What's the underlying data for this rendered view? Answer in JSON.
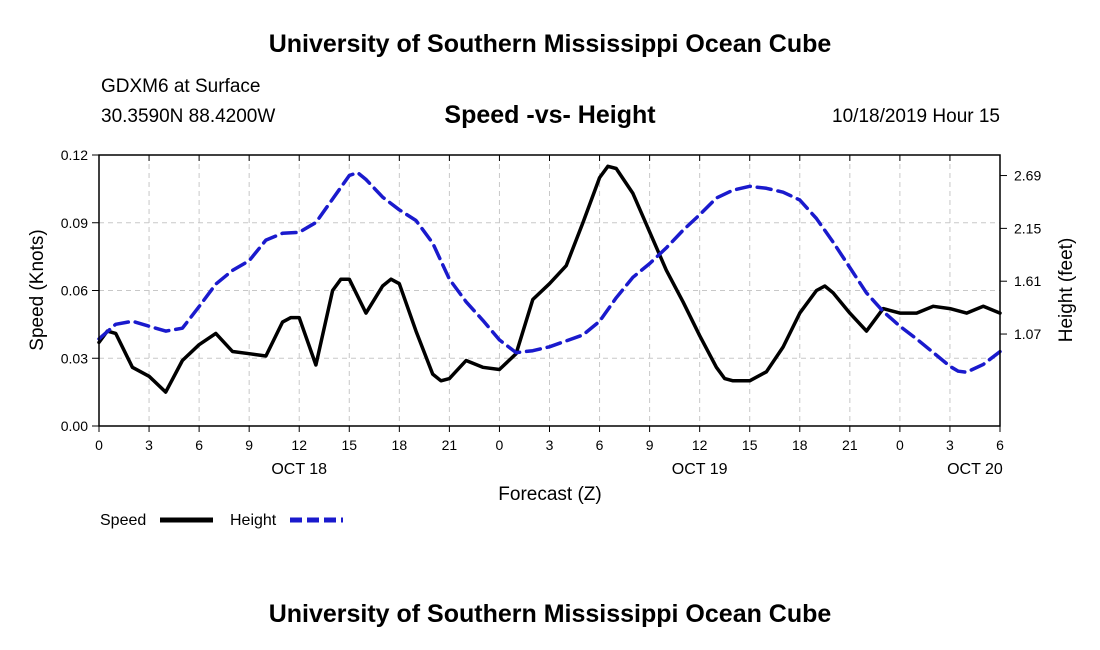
{
  "page": {
    "top_title": "University of Southern Mississippi Ocean Cube",
    "bottom_title": "University of Southern Mississippi Ocean Cube",
    "station": "GDXM6 at Surface",
    "coords": "30.3590N 88.4200W",
    "datetime": "10/18/2019 Hour 15"
  },
  "chart_data": {
    "type": "line",
    "title": "Speed -vs- Height",
    "xlabel": "Forecast (Z)",
    "ylabel_left": "Speed (Knots)",
    "ylabel_right": "Height (feet)",
    "x_range_hours": [
      0,
      54
    ],
    "x_ticks": [
      {
        "h": 0,
        "label": "0"
      },
      {
        "h": 3,
        "label": "3"
      },
      {
        "h": 6,
        "label": "6"
      },
      {
        "h": 9,
        "label": "9"
      },
      {
        "h": 12,
        "label": "12"
      },
      {
        "h": 15,
        "label": "15"
      },
      {
        "h": 18,
        "label": "18"
      },
      {
        "h": 21,
        "label": "21"
      },
      {
        "h": 24,
        "label": "0"
      },
      {
        "h": 27,
        "label": "3"
      },
      {
        "h": 30,
        "label": "6"
      },
      {
        "h": 33,
        "label": "9"
      },
      {
        "h": 36,
        "label": "12"
      },
      {
        "h": 39,
        "label": "15"
      },
      {
        "h": 42,
        "label": "18"
      },
      {
        "h": 45,
        "label": "21"
      },
      {
        "h": 48,
        "label": "0"
      },
      {
        "h": 51,
        "label": "3"
      },
      {
        "h": 54,
        "label": "6"
      }
    ],
    "day_labels": [
      {
        "h": 12,
        "label": "OCT 18"
      },
      {
        "h": 36,
        "label": "OCT 19"
      },
      {
        "h": 52.5,
        "label": "OCT 20"
      }
    ],
    "left_axis": {
      "min": 0,
      "max": 0.12,
      "ticks": [
        "0.00",
        "0.03",
        "0.06",
        "0.09",
        "0.12"
      ]
    },
    "right_axis": {
      "min": 0.13,
      "max": 2.9,
      "ticks": [
        "1.07",
        "1.61",
        "2.15",
        "2.69"
      ]
    },
    "grid": true,
    "legend_position": "bottom-left",
    "series": [
      {
        "name": "Speed",
        "axis": "left",
        "color": "#000000",
        "style": "solid",
        "points": [
          [
            0,
            0.037
          ],
          [
            0.5,
            0.042
          ],
          [
            1,
            0.041
          ],
          [
            2,
            0.026
          ],
          [
            3,
            0.022
          ],
          [
            4,
            0.015
          ],
          [
            5,
            0.029
          ],
          [
            6,
            0.036
          ],
          [
            7,
            0.041
          ],
          [
            8,
            0.033
          ],
          [
            9,
            0.032
          ],
          [
            10,
            0.031
          ],
          [
            11,
            0.046
          ],
          [
            11.5,
            0.048
          ],
          [
            12,
            0.048
          ],
          [
            13,
            0.027
          ],
          [
            14,
            0.06
          ],
          [
            14.5,
            0.065
          ],
          [
            15,
            0.065
          ],
          [
            16,
            0.05
          ],
          [
            17,
            0.062
          ],
          [
            17.5,
            0.065
          ],
          [
            18,
            0.063
          ],
          [
            19,
            0.042
          ],
          [
            20,
            0.023
          ],
          [
            20.5,
            0.02
          ],
          [
            21,
            0.021
          ],
          [
            22,
            0.029
          ],
          [
            23,
            0.026
          ],
          [
            24,
            0.025
          ],
          [
            25,
            0.032
          ],
          [
            26,
            0.056
          ],
          [
            27,
            0.063
          ],
          [
            28,
            0.071
          ],
          [
            29,
            0.09
          ],
          [
            30,
            0.11
          ],
          [
            30.5,
            0.115
          ],
          [
            31,
            0.114
          ],
          [
            32,
            0.103
          ],
          [
            33,
            0.086
          ],
          [
            34,
            0.069
          ],
          [
            35,
            0.055
          ],
          [
            36,
            0.04
          ],
          [
            37,
            0.026
          ],
          [
            37.5,
            0.021
          ],
          [
            38,
            0.02
          ],
          [
            39,
            0.02
          ],
          [
            40,
            0.024
          ],
          [
            41,
            0.035
          ],
          [
            42,
            0.05
          ],
          [
            43,
            0.06
          ],
          [
            43.5,
            0.062
          ],
          [
            44,
            0.059
          ],
          [
            45,
            0.05
          ],
          [
            46,
            0.042
          ],
          [
            47,
            0.052
          ],
          [
            48,
            0.05
          ],
          [
            49,
            0.05
          ],
          [
            50,
            0.053
          ],
          [
            51,
            0.052
          ],
          [
            52,
            0.05
          ],
          [
            53,
            0.053
          ],
          [
            54,
            0.05
          ]
        ]
      },
      {
        "name": "Height",
        "axis": "right",
        "color": "#1a1acd",
        "style": "dashed",
        "points": [
          [
            0,
            1.02
          ],
          [
            1,
            1.17
          ],
          [
            2,
            1.2
          ],
          [
            3,
            1.15
          ],
          [
            4,
            1.1
          ],
          [
            5,
            1.13
          ],
          [
            6,
            1.35
          ],
          [
            7,
            1.58
          ],
          [
            8,
            1.72
          ],
          [
            9,
            1.82
          ],
          [
            10,
            2.03
          ],
          [
            11,
            2.1
          ],
          [
            12,
            2.11
          ],
          [
            13,
            2.21
          ],
          [
            14,
            2.45
          ],
          [
            15,
            2.69
          ],
          [
            15.5,
            2.72
          ],
          [
            16,
            2.65
          ],
          [
            17,
            2.47
          ],
          [
            18,
            2.34
          ],
          [
            19,
            2.23
          ],
          [
            20,
            2.0
          ],
          [
            21,
            1.63
          ],
          [
            22,
            1.4
          ],
          [
            23,
            1.21
          ],
          [
            24,
            1.01
          ],
          [
            25,
            0.88
          ],
          [
            26,
            0.9
          ],
          [
            27,
            0.94
          ],
          [
            28,
            1.0
          ],
          [
            29,
            1.06
          ],
          [
            30,
            1.2
          ],
          [
            31,
            1.44
          ],
          [
            32,
            1.65
          ],
          [
            33,
            1.79
          ],
          [
            34,
            1.95
          ],
          [
            35,
            2.13
          ],
          [
            36,
            2.29
          ],
          [
            37,
            2.46
          ],
          [
            38,
            2.54
          ],
          [
            39,
            2.58
          ],
          [
            40,
            2.56
          ],
          [
            41,
            2.52
          ],
          [
            42,
            2.44
          ],
          [
            43,
            2.25
          ],
          [
            44,
            2.01
          ],
          [
            45,
            1.75
          ],
          [
            46,
            1.49
          ],
          [
            47,
            1.3
          ],
          [
            48,
            1.15
          ],
          [
            49,
            1.02
          ],
          [
            50,
            0.88
          ],
          [
            51,
            0.74
          ],
          [
            51.5,
            0.69
          ],
          [
            52,
            0.68
          ],
          [
            53,
            0.76
          ],
          [
            54,
            0.89
          ]
        ]
      }
    ]
  }
}
